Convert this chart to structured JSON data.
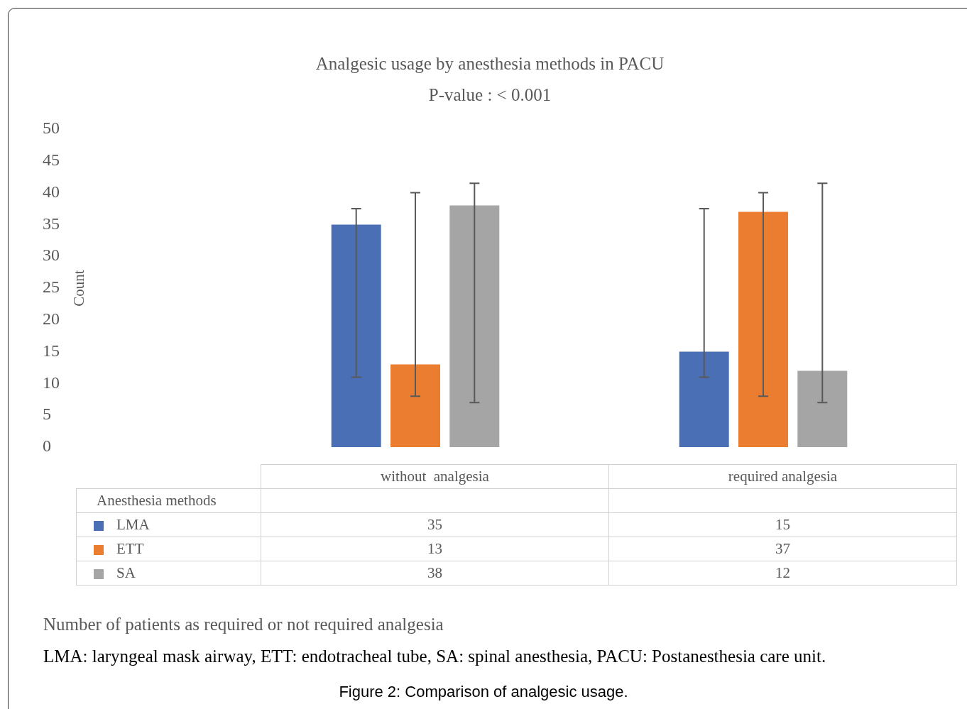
{
  "chart_data": {
    "type": "bar",
    "title": "Analgesic usage by anesthesia methods in PACU",
    "subtitle": "P-value : < 0.001",
    "ylabel": "Count",
    "legend_title": "Anesthesia methods",
    "categories": [
      "without  analgesia",
      "required analgesia"
    ],
    "series": [
      {
        "name": "LMA",
        "color": "#4a6fb5",
        "values": [
          35,
          15
        ],
        "errors": [
          [
            11,
            37.5
          ],
          [
            11,
            37.5
          ]
        ]
      },
      {
        "name": "ETT",
        "color": "#eb7d30",
        "values": [
          13,
          37
        ],
        "errors": [
          [
            8,
            40
          ],
          [
            8,
            40
          ]
        ]
      },
      {
        "name": "SA",
        "color": "#a5a5a5",
        "values": [
          38,
          12
        ],
        "errors": [
          [
            7,
            41.5
          ],
          [
            7,
            41.5
          ]
        ]
      }
    ],
    "ylim": [
      0,
      50
    ],
    "yticks": [
      0,
      5,
      10,
      15,
      20,
      25,
      30,
      35,
      40,
      45,
      50
    ],
    "grid": false,
    "legend": "bottom",
    "data_labels": true,
    "annotations": [
      "Number of patients as required or not required analgesia",
      "LMA: laryngeal mask airway, ETT: endotracheal tube, SA: spinal anesthesia, PACU: Postanesthesia care unit.",
      "Figure 2: Comparison of analgesic usage."
    ]
  }
}
